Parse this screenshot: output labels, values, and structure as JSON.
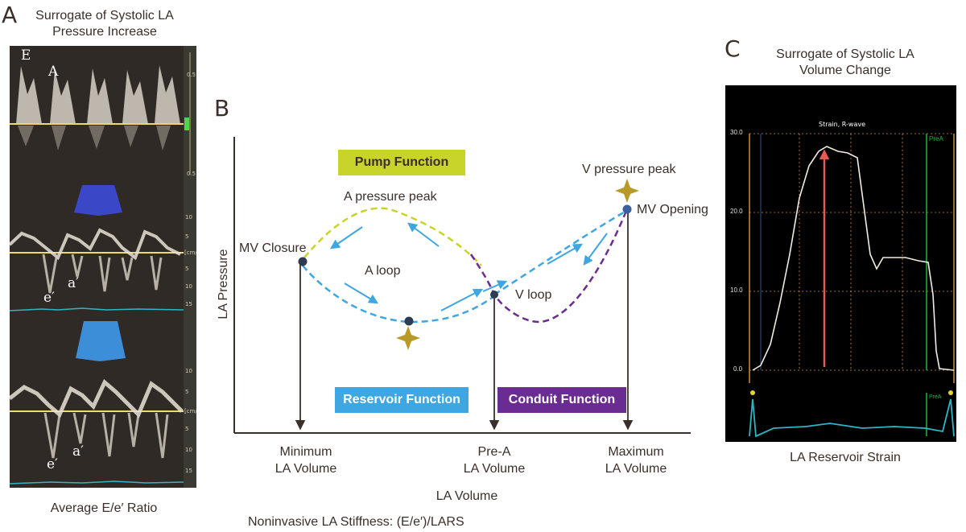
{
  "panel_a": {
    "letter": "A",
    "title_line1": "Surrogate of Systolic LA",
    "title_line2": "Pressure Increase",
    "mitral_labels": {
      "e_wave": "E",
      "a_wave": "A"
    },
    "septal_labels": {
      "e_prime": "e′",
      "a_prime": "a′"
    },
    "lateral_labels": {
      "e_prime": "e′",
      "a_prime": "a′"
    },
    "scale_top": [
      "0.5",
      "0.5"
    ],
    "scale_mid": [
      "10",
      "5",
      "[cm/s]",
      "5",
      "10",
      "15"
    ],
    "scale_bot": [
      "10",
      "5",
      "[cm/s]",
      "5",
      "10",
      "15"
    ],
    "caption": "Average E/e′ Ratio"
  },
  "panel_b": {
    "letter": "B",
    "pump_function": "Pump Function",
    "reservoir_function": "Reservoir Function",
    "conduit_function": "Conduit Function",
    "v_pressure_peak": "V pressure peak",
    "a_pressure_peak": "A pressure peak",
    "mv_opening": "MV Opening",
    "mv_closure": "MV Closure",
    "a_loop": "A loop",
    "v_loop": "V loop",
    "y_axis_label": "LA Pressure",
    "x_axis_label": "LA Volume",
    "tick_min_1": "Minimum",
    "tick_min_2": "LA Volume",
    "tick_prea_1": "Pre-A",
    "tick_prea_2": "LA Volume",
    "tick_max_1": "Maximum",
    "tick_max_2": "LA Volume",
    "footnote": "Noninvasive LA Stiffness: (E/e′)/LARS",
    "colors": {
      "pump": "#c8d42a",
      "reservoir": "#3ea6e0",
      "conduit": "#6a2c91",
      "marker": "#b79a27",
      "axis": "#3a2f2a"
    }
  },
  "panel_c": {
    "letter": "C",
    "title_line1": "Surrogate of Systolic LA",
    "title_line2": "Volume Change",
    "plot_title": "Strain, R-wave",
    "y_ticks": [
      "30.0",
      "20.0",
      "10.0",
      "0.0"
    ],
    "prea_label": "PreA",
    "prea_label_small": "PreA",
    "caption": "LA Reservoir Strain",
    "colors": {
      "grid": "#c98f3c",
      "trace": "#f2ece2",
      "arrow": "#e85a4f",
      "prea": "#1fb83a",
      "ecg": "#2fb6c4"
    }
  }
}
